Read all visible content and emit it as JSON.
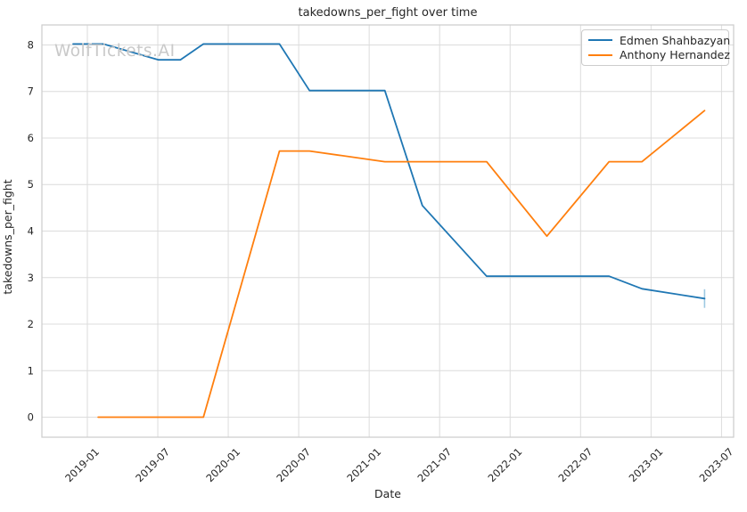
{
  "watermark": "WolfTickets.AI",
  "colors": {
    "background": "#ffffff",
    "grid": "#dcdcdc",
    "axes_border": "#cccccc",
    "text": "#262626",
    "watermark": "#c9c9c9",
    "series_blue": "#1f77b4",
    "series_orange": "#ff7f0e",
    "errorbar": "#9ec9e2"
  },
  "chart_data": {
    "type": "line",
    "title": "takedowns_per_fight over time",
    "xlabel": "Date",
    "ylabel": "takedowns_per_fight",
    "grid": true,
    "legend_position": "upper right",
    "x_ticks": [
      "2019-01",
      "2019-07",
      "2020-01",
      "2020-07",
      "2021-01",
      "2021-07",
      "2022-01",
      "2022-07",
      "2023-01",
      "2023-07"
    ],
    "y_ticks": [
      0,
      1,
      2,
      3,
      4,
      5,
      6,
      7,
      8
    ],
    "xlim": [
      "2018-09-05",
      "2023-08-02"
    ],
    "ylim": [
      -0.43,
      8.43
    ],
    "series": [
      {
        "name": "Edmen Shahbazyan",
        "color": "#1f77b4",
        "x": [
          "2018-11-25",
          "2019-02-12",
          "2019-07-03",
          "2019-08-29",
          "2019-10-28",
          "2020-05-12",
          "2020-07-29",
          "2021-02-11",
          "2021-05-17",
          "2021-11-01",
          "2022-09-14",
          "2022-12-08",
          "2023-05-18"
        ],
        "y": [
          8.02,
          8.02,
          7.68,
          7.68,
          8.02,
          8.02,
          7.02,
          7.02,
          4.55,
          3.03,
          3.03,
          2.76,
          2.55
        ],
        "last_point_errorbar": {
          "low": 2.35,
          "high": 2.75
        }
      },
      {
        "name": "Anthony Hernandez",
        "color": "#ff7f0e",
        "x": [
          "2019-01-29",
          "2019-10-28",
          "2020-05-12",
          "2020-07-29",
          "2021-02-11",
          "2021-11-01",
          "2022-04-05",
          "2022-09-14",
          "2022-12-08",
          "2023-05-18"
        ],
        "y": [
          0.0,
          0.0,
          5.72,
          5.72,
          5.49,
          5.49,
          3.89,
          5.49,
          5.49,
          6.59
        ]
      }
    ]
  }
}
